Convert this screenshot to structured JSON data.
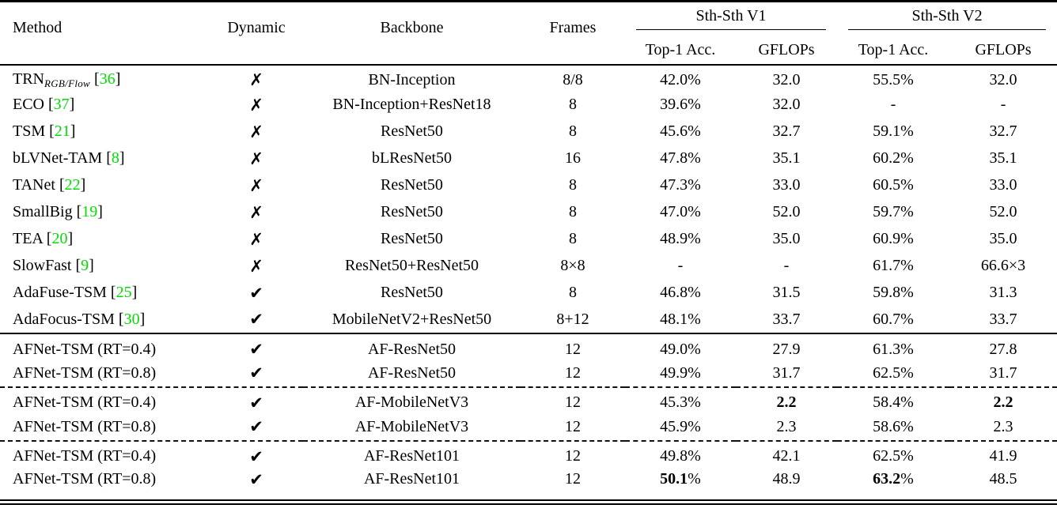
{
  "table": {
    "headers": {
      "method": "Method",
      "dynamic": "Dynamic",
      "backbone": "Backbone",
      "frames": "Frames",
      "group1": "Sth-Sth V1",
      "group2": "Sth-Sth V2",
      "top1": "Top-1 Acc.",
      "gflops": "GFLOPs"
    },
    "icons": {
      "dynamic_yes": "✔",
      "dynamic_no": "✗"
    },
    "colors": {
      "citation_green": "#00DE00"
    },
    "rows": [
      {
        "name": "TRN",
        "name_sub": "RGB/Flow",
        "cite": "36",
        "dynamic": false,
        "backbone": "BN-Inception",
        "frames": "8/8",
        "v1_acc": "42.0%",
        "v1_flops": "32.0",
        "v2_acc": "55.5%",
        "v2_flops": "32.0"
      },
      {
        "name": "ECO",
        "cite": "37",
        "dynamic": false,
        "backbone": "BN-Inception+ResNet18",
        "frames": "8",
        "v1_acc": "39.6%",
        "v1_flops": "32.0",
        "v2_acc": "-",
        "v2_flops": "-"
      },
      {
        "name": "TSM",
        "cite": "21",
        "dynamic": false,
        "backbone": "ResNet50",
        "frames": "8",
        "v1_acc": "45.6%",
        "v1_flops": "32.7",
        "v2_acc": "59.1%",
        "v2_flops": "32.7"
      },
      {
        "name": "bLVNet-TAM",
        "cite": "8",
        "dynamic": false,
        "backbone": "bLResNet50",
        "frames": "16",
        "v1_acc": "47.8%",
        "v1_flops": "35.1",
        "v2_acc": "60.2%",
        "v2_flops": "35.1"
      },
      {
        "name": "TANet",
        "cite": "22",
        "dynamic": false,
        "backbone": "ResNet50",
        "frames": "8",
        "v1_acc": "47.3%",
        "v1_flops": "33.0",
        "v2_acc": "60.5%",
        "v2_flops": "33.0"
      },
      {
        "name": "SmallBig",
        "cite": "19",
        "dynamic": false,
        "backbone": "ResNet50",
        "frames": "8",
        "v1_acc": "47.0%",
        "v1_flops": "52.0",
        "v2_acc": "59.7%",
        "v2_flops": "52.0"
      },
      {
        "name": "TEA",
        "cite": "20",
        "dynamic": false,
        "backbone": "ResNet50",
        "frames": "8",
        "v1_acc": "48.9%",
        "v1_flops": "35.0",
        "v2_acc": "60.9%",
        "v2_flops": "35.0"
      },
      {
        "name": "SlowFast",
        "cite": "9",
        "dynamic": false,
        "backbone": "ResNet50+ResNet50",
        "frames": "8×8",
        "v1_acc": "-",
        "v1_flops": "-",
        "v2_acc": "61.7%",
        "v2_flops": "66.6×3"
      },
      {
        "name": "AdaFuse-TSM",
        "cite": "25",
        "dynamic": true,
        "backbone": "ResNet50",
        "frames": "8",
        "v1_acc": "46.8%",
        "v1_flops": "31.5",
        "v2_acc": "59.8%",
        "v2_flops": "31.3"
      },
      {
        "name": "AdaFocus-TSM",
        "cite": "30",
        "dynamic": true,
        "backbone": "MobileNetV2+ResNet50",
        "frames": "8+12",
        "v1_acc": "48.1%",
        "v1_flops": "33.7",
        "v2_acc": "60.7%",
        "v2_flops": "33.7"
      },
      {
        "name": "AFNet-TSM (RT=0.4)",
        "dynamic": true,
        "backbone": "AF-ResNet50",
        "frames": "12",
        "v1_acc": "49.0%",
        "v1_flops": "27.9",
        "v2_acc": "61.3%",
        "v2_flops": "27.8",
        "rule": "solid"
      },
      {
        "name": "AFNet-TSM (RT=0.8)",
        "dynamic": true,
        "backbone": "AF-ResNet50",
        "frames": "12",
        "v1_acc": "49.9%",
        "v1_flops": "31.7",
        "v2_acc": "62.5%",
        "v2_flops": "31.7"
      },
      {
        "name": "AFNet-TSM (RT=0.4)",
        "dynamic": true,
        "backbone": "AF-MobileNetV3",
        "frames": "12",
        "v1_acc": "45.3%",
        "v1_flops": "2.2",
        "v2_acc": "58.4%",
        "v2_flops": "2.2",
        "bold": [
          "v1_flops",
          "v2_flops"
        ],
        "rule": "dashed"
      },
      {
        "name": "AFNet-TSM (RT=0.8)",
        "dynamic": true,
        "backbone": "AF-MobileNetV3",
        "frames": "12",
        "v1_acc": "45.9%",
        "v1_flops": "2.3",
        "v2_acc": "58.6%",
        "v2_flops": "2.3"
      },
      {
        "name": "AFNet-TSM (RT=0.4)",
        "dynamic": true,
        "backbone": "AF-ResNet101",
        "frames": "12",
        "v1_acc": "49.8%",
        "v1_flops": "42.1",
        "v2_acc": "62.5%",
        "v2_flops": "41.9",
        "rule": "dashed"
      },
      {
        "name": "AFNet-TSM (RT=0.8)",
        "dynamic": true,
        "backbone": "AF-ResNet101",
        "frames": "12",
        "v1_acc": "50.1%",
        "v1_flops": "48.9",
        "v2_acc": "63.2%",
        "v2_flops": "48.5",
        "bold": [
          "v1_acc",
          "v2_acc"
        ]
      }
    ]
  }
}
